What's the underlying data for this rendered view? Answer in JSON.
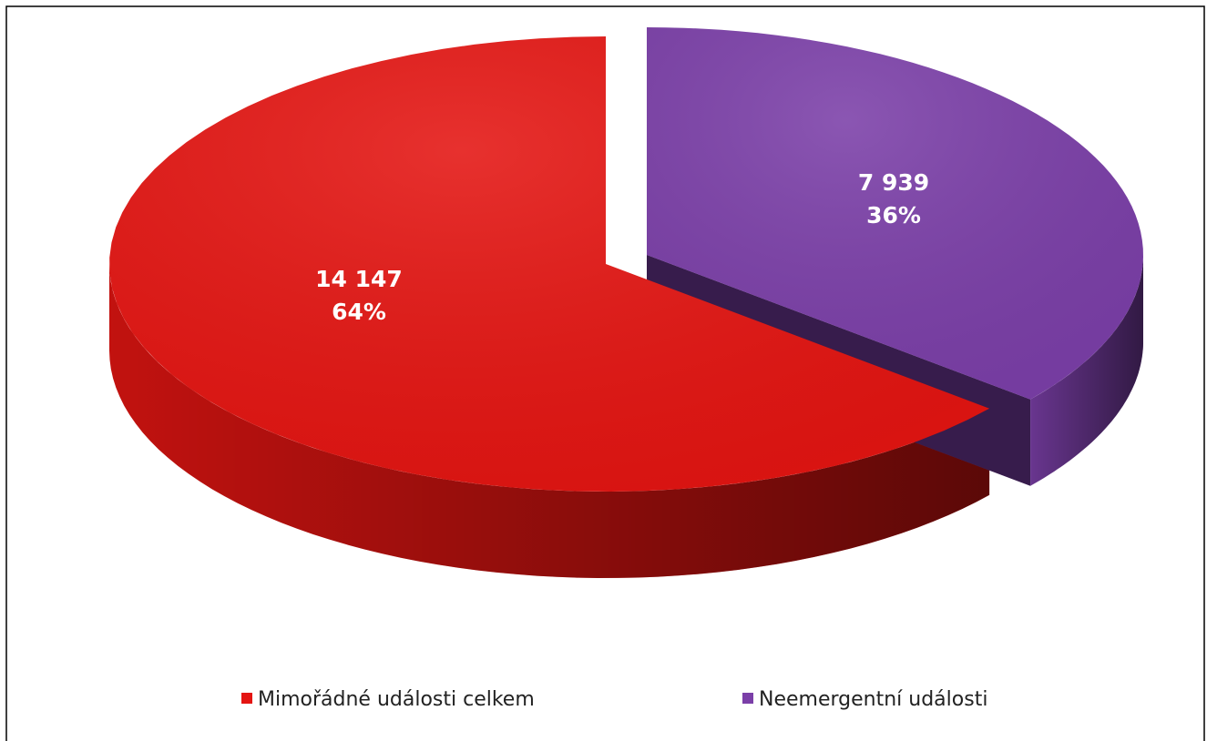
{
  "chart_data": {
    "type": "pie",
    "categories": [
      "Mimořádné události celkem",
      "Neemergentní události"
    ],
    "values": [
      14147,
      7939
    ],
    "value_labels": [
      "14 147",
      "7 939"
    ],
    "percent_values": [
      64,
      36
    ],
    "percent_labels": [
      "64%",
      "36%"
    ],
    "colors": [
      "#e41512",
      "#7b3fa8"
    ],
    "legend": "bottom"
  }
}
